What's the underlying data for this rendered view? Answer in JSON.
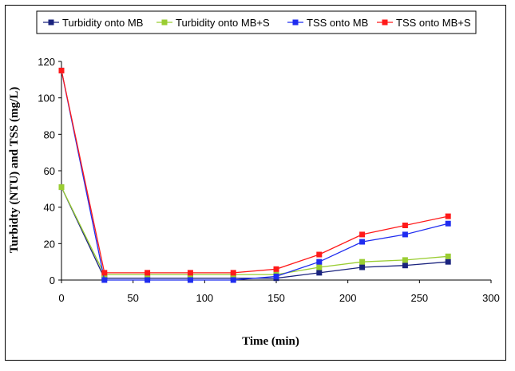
{
  "chart_data": {
    "type": "line",
    "title": "",
    "xlabel": "Time (min)",
    "ylabel": "Turbidty (NTU) and TSS (mg/L)",
    "xlim": [
      0,
      300
    ],
    "ylim": [
      0,
      120
    ],
    "xticks": [
      0,
      50,
      100,
      150,
      200,
      250,
      300
    ],
    "yticks": [
      0,
      20,
      40,
      60,
      80,
      100,
      120
    ],
    "grid": false,
    "legend_position": "top",
    "x": [
      0,
      30,
      60,
      90,
      120,
      150,
      180,
      210,
      240,
      270
    ],
    "series": [
      {
        "name": "Turbidity onto MB",
        "color": "#1a237e",
        "values": [
          51,
          1,
          1,
          1,
          1,
          1,
          4,
          7,
          8,
          10
        ]
      },
      {
        "name": "Turbidity onto MB+S",
        "color": "#9acd32",
        "values": [
          51,
          3,
          3,
          3,
          3,
          3,
          7,
          10,
          11,
          13
        ]
      },
      {
        "name": "TSS onto MB",
        "color": "#1f2cf0",
        "values": [
          115,
          0,
          0,
          0,
          0,
          2,
          10,
          21,
          25,
          31
        ]
      },
      {
        "name": "TSS onto MB+S",
        "color": "#ff1a1a",
        "values": [
          115,
          4,
          4,
          4,
          4,
          6,
          14,
          25,
          30,
          35
        ]
      }
    ]
  }
}
